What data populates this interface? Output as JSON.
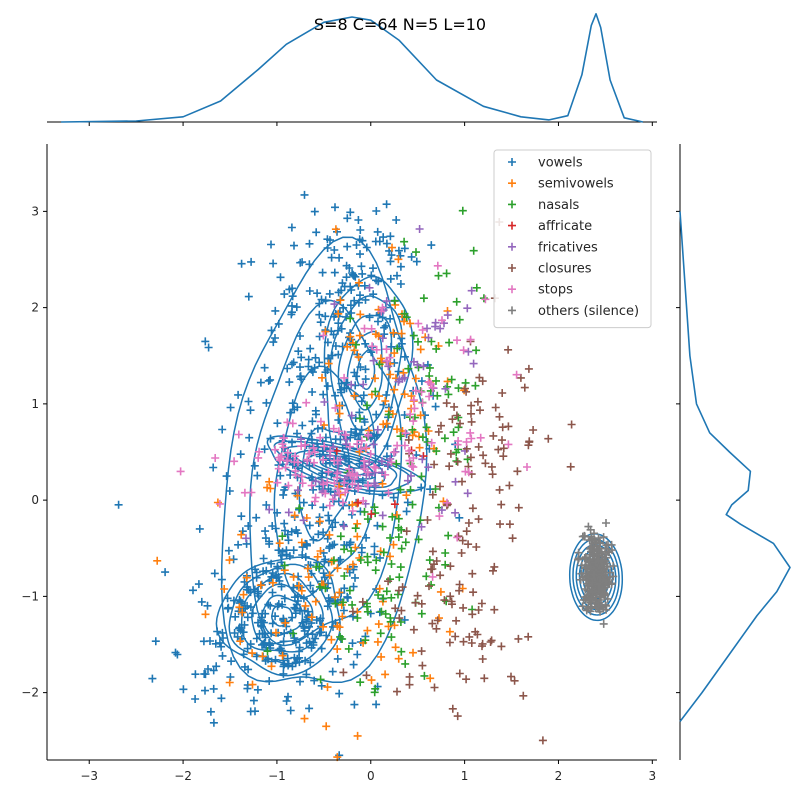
{
  "chart_data": {
    "type": "scatter",
    "title": "S=8 C=64 N=5 L=10",
    "xlabel": "",
    "ylabel": "",
    "xlim": [
      -3.45,
      3.05
    ],
    "ylim": [
      -2.7,
      3.7
    ],
    "xticks": [
      -3,
      -2,
      -1,
      0,
      1,
      2,
      3
    ],
    "yticks": [
      -2,
      -1,
      0,
      1,
      2,
      3
    ],
    "grid": false,
    "legend_position": "top-right",
    "marker": "plus",
    "series": [
      {
        "name": "vowels",
        "color": "#1f77b4",
        "count": 720,
        "clusters": [
          {
            "cx": -0.95,
            "cy": -1.15,
            "sx": 0.45,
            "sy": 0.5,
            "w": 0.45
          },
          {
            "cx": -0.45,
            "cy": 0.7,
            "sx": 0.45,
            "sy": 0.85,
            "w": 0.4
          },
          {
            "cx": -0.2,
            "cy": 2.2,
            "sx": 0.35,
            "sy": 0.45,
            "w": 0.15
          }
        ]
      },
      {
        "name": "semivowels",
        "color": "#ff7f0e",
        "count": 170,
        "clusters": [
          {
            "cx": -0.4,
            "cy": -0.8,
            "sx": 0.6,
            "sy": 0.7,
            "w": 0.6
          },
          {
            "cx": 0.2,
            "cy": 1.3,
            "sx": 0.4,
            "sy": 0.7,
            "w": 0.4
          }
        ]
      },
      {
        "name": "nasals",
        "color": "#2ca02c",
        "count": 150,
        "clusters": [
          {
            "cx": 0.1,
            "cy": -0.9,
            "sx": 0.45,
            "sy": 0.6,
            "w": 0.55
          },
          {
            "cx": 0.6,
            "cy": 1.2,
            "sx": 0.35,
            "sy": 0.7,
            "w": 0.45
          }
        ]
      },
      {
        "name": "affricate",
        "color": "#d62728",
        "count": 6,
        "clusters": [
          {
            "cx": 0.3,
            "cy": 0.2,
            "sx": 0.3,
            "sy": 0.3,
            "w": 1.0
          }
        ]
      },
      {
        "name": "fricatives",
        "color": "#9467bd",
        "count": 90,
        "clusters": [
          {
            "cx": -0.3,
            "cy": 0.25,
            "sx": 0.5,
            "sy": 0.25,
            "w": 0.7
          },
          {
            "cx": 0.3,
            "cy": 1.5,
            "sx": 0.4,
            "sy": 0.5,
            "w": 0.3
          }
        ]
      },
      {
        "name": "closures",
        "color": "#8c564b",
        "count": 150,
        "clusters": [
          {
            "cx": 0.9,
            "cy": -1.2,
            "sx": 0.45,
            "sy": 0.45,
            "w": 0.5
          },
          {
            "cx": 1.2,
            "cy": 0.6,
            "sx": 0.35,
            "sy": 0.6,
            "w": 0.5
          }
        ]
      },
      {
        "name": "stops",
        "color": "#e377c2",
        "count": 150,
        "clusters": [
          {
            "cx": -0.4,
            "cy": 0.3,
            "sx": 0.55,
            "sy": 0.2,
            "w": 0.6
          },
          {
            "cx": 0.4,
            "cy": 1.0,
            "sx": 0.5,
            "sy": 0.6,
            "w": 0.4
          }
        ]
      },
      {
        "name": "others (silence)",
        "color": "#7f7f7f",
        "count": 320,
        "clusters": [
          {
            "cx": 2.4,
            "cy": -0.75,
            "sx": 0.07,
            "sy": 0.2,
            "w": 1.0
          }
        ]
      }
    ],
    "kde_color": "#1f77b4",
    "marginal_x": {
      "x": [
        -3.3,
        -2.5,
        -2.0,
        -1.6,
        -1.2,
        -0.9,
        -0.5,
        -0.2,
        0.0,
        0.3,
        0.7,
        1.2,
        1.6,
        1.9,
        2.1,
        2.25,
        2.35,
        2.4,
        2.45,
        2.55,
        2.7,
        2.9
      ],
      "density": [
        0.0,
        0.01,
        0.05,
        0.2,
        0.5,
        0.74,
        0.95,
        1.0,
        0.97,
        0.78,
        0.4,
        0.15,
        0.05,
        0.02,
        0.06,
        0.45,
        0.92,
        1.03,
        0.9,
        0.4,
        0.04,
        0.0
      ]
    },
    "marginal_y": {
      "y": [
        -2.3,
        -2.0,
        -1.6,
        -1.2,
        -0.95,
        -0.7,
        -0.45,
        -0.25,
        -0.15,
        -0.05,
        0.1,
        0.3,
        0.5,
        0.7,
        1.0,
        1.5,
        2.0,
        2.5,
        3.0
      ],
      "density": [
        0.0,
        0.2,
        0.45,
        0.7,
        0.88,
        1.0,
        0.85,
        0.55,
        0.42,
        0.47,
        0.62,
        0.64,
        0.45,
        0.27,
        0.15,
        0.09,
        0.06,
        0.03,
        0.0
      ]
    }
  }
}
